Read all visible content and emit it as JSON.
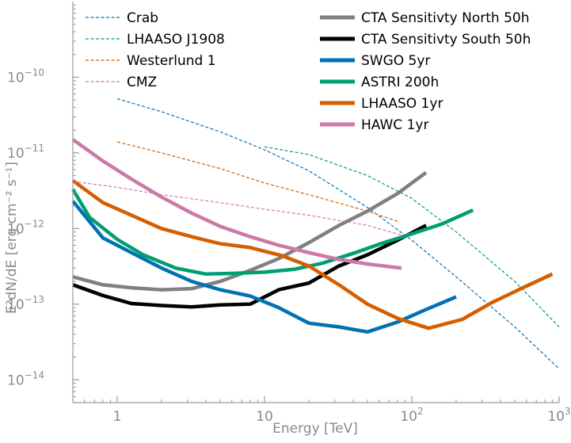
{
  "chart_data": {
    "type": "line",
    "xlabel": "Energy [TeV]",
    "ylabel": "E²dN/dE [erg cm⁻² s⁻¹]",
    "xscale": "log",
    "yscale": "log",
    "xlim": [
      0.5,
      1000
    ],
    "ylim": [
      5e-15,
      1e-09
    ],
    "x_ticks": [
      {
        "value": 1,
        "base": "1",
        "exp": ""
      },
      {
        "value": 10,
        "base": "10",
        "exp": ""
      },
      {
        "value": 100,
        "base": "10",
        "exp": "2"
      },
      {
        "value": 1000,
        "base": "10",
        "exp": "3"
      }
    ],
    "y_ticks": [
      {
        "value": 1e-14,
        "base": "10",
        "exp": "−14"
      },
      {
        "value": 1e-13,
        "base": "10",
        "exp": "−13"
      },
      {
        "value": 1e-12,
        "base": "10",
        "exp": "−12"
      },
      {
        "value": 1e-11,
        "base": "10",
        "exp": "−11"
      },
      {
        "value": 1e-10,
        "base": "10",
        "exp": "−10"
      }
    ],
    "grid": false,
    "legend_placement": "top",
    "series": [
      {
        "name": "Crab",
        "color": "#0072B2",
        "style": "dashed",
        "x": [
          1,
          2,
          5,
          10,
          20,
          50,
          100,
          200,
          500,
          1000
        ],
        "y": [
          5.2e-11,
          3.5e-11,
          1.9e-11,
          1.1e-11,
          5.8e-12,
          1.9e-12,
          7e-13,
          2.3e-13,
          5e-14,
          1.4e-14
        ]
      },
      {
        "name": "LHAASO J1908",
        "color": "#009E73",
        "style": "dashed",
        "x": [
          10,
          20,
          50,
          100,
          200,
          500,
          1000
        ],
        "y": [
          1.2e-11,
          9.5e-12,
          5e-12,
          2.5e-12,
          9e-13,
          2e-13,
          5e-14
        ]
      },
      {
        "name": "Westerlund 1",
        "color": "#D55E00",
        "style": "dashed",
        "x": [
          1,
          2,
          5,
          10,
          20,
          50,
          80
        ],
        "y": [
          1.4e-11,
          1e-11,
          6.2e-12,
          4e-12,
          2.8e-12,
          1.7e-12,
          1.25e-12
        ]
      },
      {
        "name": "CMZ",
        "color": "#CC79A7",
        "style": "dashed",
        "x": [
          0.5,
          1,
          2,
          5,
          10,
          20,
          50,
          85
        ],
        "y": [
          4.2e-12,
          3.5e-12,
          2.8e-12,
          2.2e-12,
          1.8e-12,
          1.5e-12,
          1.1e-12,
          8.2e-13
        ]
      },
      {
        "name": "CTA Sensitivty North 50h",
        "color": "#808080",
        "style": "solid",
        "x": [
          0.5,
          0.8,
          1.25,
          2,
          3.2,
          5,
          8,
          12.5,
          20,
          32,
          50,
          80,
          125
        ],
        "y": [
          2.3e-13,
          1.8e-13,
          1.65e-13,
          1.55e-13,
          1.6e-13,
          2e-13,
          2.8e-13,
          4e-13,
          6.5e-13,
          1.1e-12,
          1.7e-12,
          2.9e-12,
          5.5e-12
        ]
      },
      {
        "name": "CTA Sensitivty South 50h",
        "color": "#000000",
        "style": "solid",
        "x": [
          0.5,
          0.8,
          1.25,
          2,
          3.2,
          5,
          8,
          12.5,
          20,
          32,
          50,
          80,
          125
        ],
        "y": [
          1.8e-13,
          1.3e-13,
          1.02e-13,
          9.6e-14,
          9.2e-14,
          9.8e-14,
          1e-13,
          1.55e-13,
          1.9e-13,
          3.2e-13,
          4.5e-13,
          7e-13,
          1.1e-12
        ]
      },
      {
        "name": "SWGO 5yr",
        "color": "#0072B2",
        "style": "solid",
        "x": [
          0.5,
          0.8,
          1.25,
          2,
          3.2,
          5,
          8,
          12.5,
          20,
          32,
          50,
          80,
          125,
          200
        ],
        "y": [
          2.3e-12,
          7.5e-13,
          4.8e-13,
          3e-13,
          2e-13,
          1.55e-13,
          1.28e-13,
          9e-14,
          5.6e-14,
          5e-14,
          4.3e-14,
          5.8e-14,
          8.5e-14,
          1.25e-13
        ]
      },
      {
        "name": "ASTRI 200h",
        "color": "#009E73",
        "style": "solid",
        "x": [
          0.5,
          0.65,
          1,
          1.5,
          2.5,
          4,
          6,
          10,
          16,
          25,
          40,
          60,
          100,
          160,
          260
        ],
        "y": [
          3.3e-12,
          1.4e-12,
          7.2e-13,
          4.5e-13,
          3e-13,
          2.5e-13,
          2.55e-13,
          2.65e-13,
          2.9e-13,
          3.5e-13,
          4.7e-13,
          6.2e-13,
          8.5e-13,
          1.15e-12,
          1.75e-12
        ]
      },
      {
        "name": "LHAASO 1yr",
        "color": "#D55E00",
        "style": "solid",
        "x": [
          0.5,
          0.8,
          1.25,
          2,
          3.2,
          5,
          8,
          13,
          20,
          32,
          50,
          80,
          130,
          220,
          350,
          550,
          900
        ],
        "y": [
          4.3e-12,
          2.2e-12,
          1.5e-12,
          1e-12,
          7.8e-13,
          6.3e-13,
          5.6e-13,
          4.4e-13,
          3.2e-13,
          1.8e-13,
          1e-13,
          6.5e-14,
          4.8e-14,
          6.3e-14,
          1.05e-13,
          1.6e-13,
          2.5e-13
        ]
      },
      {
        "name": "HAWC 1yr",
        "color": "#CC79A7",
        "style": "solid",
        "x": [
          0.5,
          0.8,
          1.25,
          2,
          3.2,
          5,
          8,
          12.5,
          20,
          32,
          50,
          85
        ],
        "y": [
          1.5e-11,
          7.8e-12,
          4.5e-12,
          2.6e-12,
          1.6e-12,
          1.07e-12,
          7.8e-13,
          6e-13,
          4.8e-13,
          3.9e-13,
          3.4e-13,
          3e-13
        ]
      }
    ]
  }
}
